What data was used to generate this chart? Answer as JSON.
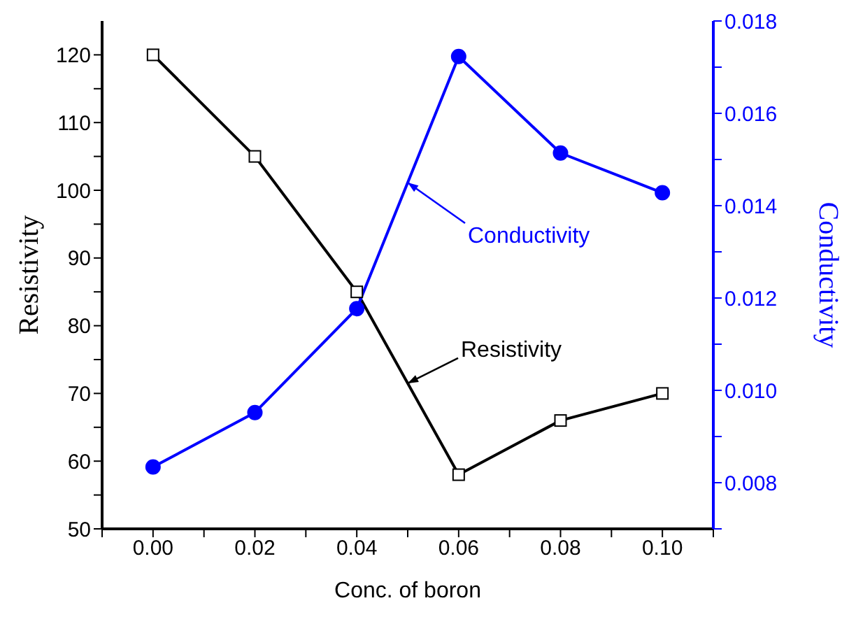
{
  "chart_data": {
    "type": "line",
    "xlabel": "Conc. of boron",
    "ylabel": "Resistivity",
    "y2label": "Conductivity",
    "x": [
      0,
      0.02,
      0.04,
      0.06,
      0.08,
      0.1
    ],
    "series": [
      {
        "name": "Resistivity",
        "color": "#000000",
        "marker": "square",
        "values": [
          120,
          105,
          85,
          58,
          66,
          70
        ]
      },
      {
        "name": "Conductivity",
        "color": "#0000ff",
        "marker": "circle",
        "axis": "y2",
        "values": [
          0.00834,
          0.00952,
          0.01177,
          0.01723,
          0.01514,
          0.01428
        ]
      }
    ],
    "xlim": [
      -0.01,
      0.11
    ],
    "xticks": [
      {
        "value": -0.01,
        "label": null
      },
      {
        "value": 0,
        "label": "0.00"
      },
      {
        "value": 0.01,
        "label": null
      },
      0.02,
      {
        "value": 0.03,
        "label": null
      },
      0.04,
      {
        "value": 0.05,
        "label": null
      },
      0.06,
      {
        "value": 0.07,
        "label": null
      },
      0.08,
      {
        "value": 0.09,
        "label": null
      },
      {
        "value": 0.1,
        "label": "0.10"
      },
      {
        "value": 0.11,
        "label": null
      }
    ],
    "ylim": [
      50,
      125
    ],
    "yticks": [
      50,
      {
        "value": 55,
        "label": null
      },
      60,
      {
        "value": 65,
        "label": null
      },
      70,
      {
        "value": 75,
        "label": null
      },
      80,
      {
        "value": 85,
        "label": null
      },
      90,
      {
        "value": 95,
        "label": null
      },
      100,
      {
        "value": 105,
        "label": null
      },
      110,
      {
        "value": 115,
        "label": null
      },
      120
    ],
    "y2lim": [
      0.007,
      0.018
    ],
    "y2ticks": [
      {
        "value": 0.007,
        "label": null
      },
      0.008,
      {
        "value": 0.009,
        "label": null
      },
      {
        "value": 0.01,
        "label": "0.010"
      },
      {
        "value": 0.011,
        "label": null
      },
      0.012,
      {
        "value": 0.013,
        "label": null
      },
      0.014,
      {
        "value": 0.015,
        "label": null
      },
      0.016,
      {
        "value": 0.017,
        "label": null
      },
      0.018
    ]
  }
}
